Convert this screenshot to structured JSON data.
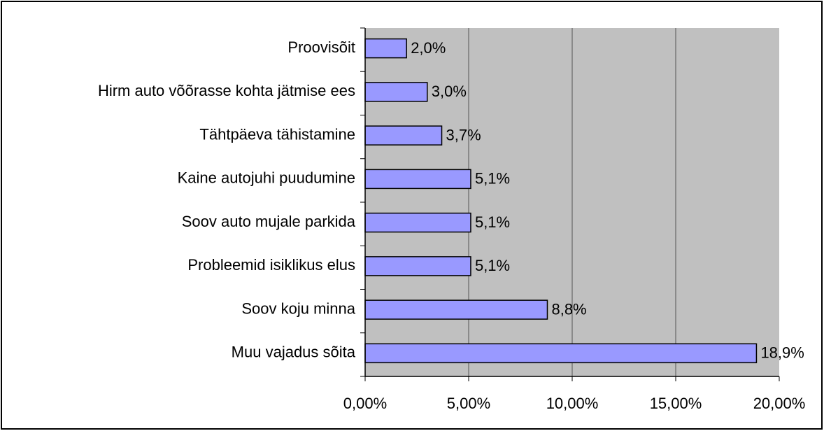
{
  "chart_data": {
    "type": "bar",
    "orientation": "horizontal",
    "categories": [
      "Proovisõit",
      "Hirm auto võõrasse kohta jätmise ees",
      "Tähtpäeva tähistamine",
      "Kaine autojuhi puudumine",
      "Soov auto mujale parkida",
      "Probleemid isiklikus elus",
      "Soov koju minna",
      "Muu vajadus sõita"
    ],
    "values": [
      2.0,
      3.0,
      3.7,
      5.1,
      5.1,
      5.1,
      8.8,
      18.9
    ],
    "value_labels": [
      "2,0%",
      "3,0%",
      "3,7%",
      "5,1%",
      "5,1%",
      "5,1%",
      "8,8%",
      "18,9%"
    ],
    "color": "#9999ff",
    "xlim": [
      0,
      20
    ],
    "xticks": [
      {
        "value": 0,
        "label": "0,00%"
      },
      {
        "value": 5,
        "label": "5,00%"
      },
      {
        "value": 10,
        "label": "10,00%"
      },
      {
        "value": 15,
        "label": "15,00%"
      },
      {
        "value": 20,
        "label": "20,00%"
      }
    ],
    "grid": true
  }
}
